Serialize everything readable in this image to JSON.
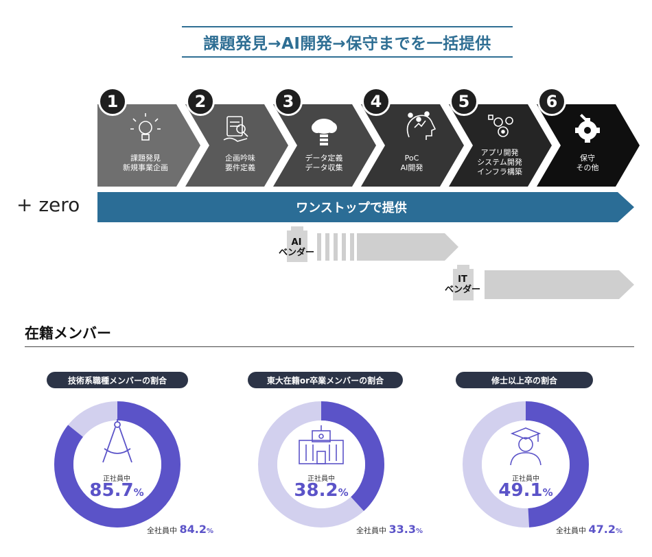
{
  "title": "課題発見→AI開発→保守までを一括提供",
  "steps": [
    {
      "number": "1",
      "label": "課題発見\n新規事業企画",
      "icon": "lightbulb-icon",
      "color": "#6f6f6f"
    },
    {
      "number": "2",
      "label": "企画吟味\n要件定義",
      "icon": "document-hand-icon",
      "color": "#5a5a5a"
    },
    {
      "number": "3",
      "label": "データ定義\nデータ収集",
      "icon": "cloud-database-icon",
      "color": "#474747"
    },
    {
      "number": "4",
      "label": "PoC\nAI開発",
      "icon": "ai-brain-icon",
      "color": "#353535"
    },
    {
      "number": "5",
      "label": "アプリ開発\nシステム開発\nインフラ構築",
      "icon": "gears-icon",
      "color": "#252525"
    },
    {
      "number": "6",
      "label": "保守\nその他",
      "icon": "wrench-gear-icon",
      "color": "#0f0f0f"
    }
  ],
  "zero_label": "+ zero",
  "one_stop_label": "ワンストップで提供",
  "vendors": [
    {
      "label": "AI\nベンダー"
    },
    {
      "label": "IT\nベンダー"
    }
  ],
  "members_heading": "在籍メンバー",
  "stats": [
    {
      "pill": "技術系職種メンバーの割合",
      "inner_label": "正社員中",
      "value": "85.7",
      "unit": "%",
      "fraction": 0.857,
      "total_label": "全社員中",
      "total_value": "84.2",
      "total_unit": "%",
      "icon": "compass-icon"
    },
    {
      "pill": "東大在籍or卒業メンバーの割合",
      "inner_label": "正社員中",
      "value": "38.2",
      "unit": "%",
      "fraction": 0.382,
      "total_label": "全社員中",
      "total_value": "33.3",
      "total_unit": "%",
      "icon": "university-building-icon"
    },
    {
      "pill": "修士以上卒の割合",
      "inner_label": "正社員中",
      "value": "49.1",
      "unit": "%",
      "fraction": 0.491,
      "total_label": "全社員中",
      "total_value": "47.2",
      "total_unit": "%",
      "icon": "graduate-icon"
    }
  ],
  "colors": {
    "accent": "#2e6e93",
    "onestop": "#2b6d96",
    "donut_fill": "#5b53c8",
    "donut_track": "#d2d0ee",
    "vendor_bar": "#cfcfcf",
    "pill": "#2c3447"
  }
}
